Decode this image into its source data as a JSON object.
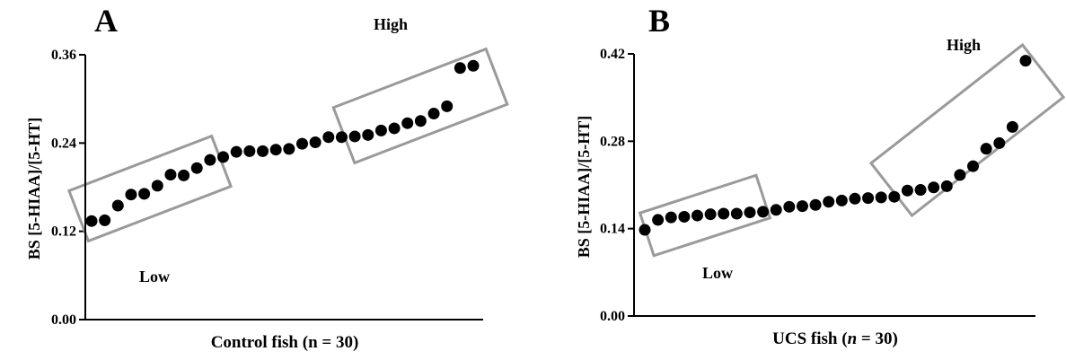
{
  "chart_data": [
    {
      "panel_label": "A",
      "type": "scatter",
      "xlabel": "Control fish (n = 30)",
      "ylabel": "BS [5-HIAA]/[5-HT]",
      "ylim": [
        0,
        0.36
      ],
      "yticks": [
        "0.00",
        "0.12",
        "0.24",
        "0.36"
      ],
      "x": [
        1,
        2,
        3,
        4,
        5,
        6,
        7,
        8,
        9,
        10,
        11,
        12,
        13,
        14,
        15,
        16,
        17,
        18,
        19,
        20,
        21,
        22,
        23,
        24,
        25,
        26,
        27,
        28,
        29,
        30
      ],
      "values": [
        0.134,
        0.135,
        0.155,
        0.17,
        0.171,
        0.182,
        0.197,
        0.196,
        0.206,
        0.217,
        0.221,
        0.228,
        0.229,
        0.229,
        0.231,
        0.232,
        0.239,
        0.241,
        0.248,
        0.248,
        0.249,
        0.251,
        0.257,
        0.26,
        0.267,
        0.27,
        0.28,
        0.29,
        0.342,
        0.345
      ],
      "groups": [
        {
          "label": "Low",
          "from": 1,
          "to": 10
        },
        {
          "label": "High",
          "from": 21,
          "to": 30
        }
      ],
      "grid": false
    },
    {
      "panel_label": "B",
      "type": "scatter",
      "xlabel_parts": [
        "UCS fish (",
        "n",
        " = 30)"
      ],
      "ylabel": "BS [5-HIAA]/[5-HT]",
      "ylim": [
        0,
        0.42
      ],
      "yticks": [
        "0.00",
        "0.14",
        "0.28",
        "0.42"
      ],
      "x": [
        1,
        2,
        3,
        4,
        5,
        6,
        7,
        8,
        9,
        10,
        11,
        12,
        13,
        14,
        15,
        16,
        17,
        18,
        19,
        20,
        21,
        22,
        23,
        24,
        25,
        26,
        27,
        28,
        29,
        30
      ],
      "values": [
        0.138,
        0.154,
        0.158,
        0.159,
        0.161,
        0.163,
        0.164,
        0.164,
        0.166,
        0.167,
        0.17,
        0.175,
        0.176,
        0.178,
        0.183,
        0.185,
        0.188,
        0.189,
        0.19,
        0.191,
        0.201,
        0.202,
        0.206,
        0.208,
        0.226,
        0.24,
        0.268,
        0.277,
        0.303,
        0.409
      ],
      "groups": [
        {
          "label": "Low",
          "from": 1,
          "to": 10
        },
        {
          "label": "High",
          "from": 21,
          "to": 30
        }
      ],
      "grid": false
    }
  ]
}
